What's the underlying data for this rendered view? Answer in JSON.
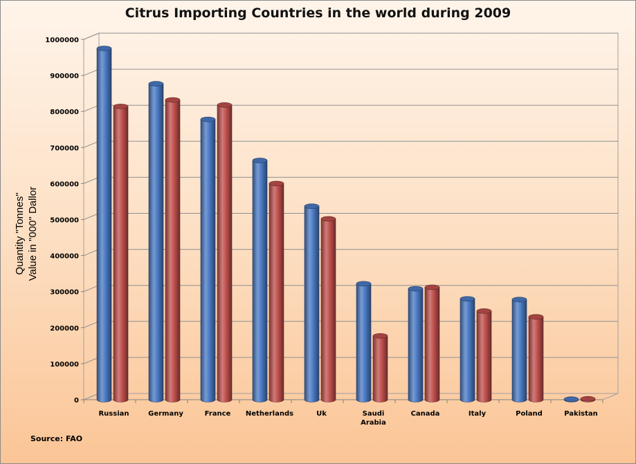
{
  "source": "Source: FAO",
  "chart_data": {
    "type": "bar",
    "title": "Citrus Importing Countries in the world during 2009",
    "ylabel_line1": "Quantity \"Tonnes\"",
    "ylabel_line2": "Value in \"000\" Dallor",
    "categories": [
      "Russian",
      "Germany",
      "France",
      "Netherlands",
      "Uk",
      "Saudi Arabia",
      "Canada",
      "Italy",
      "Poland",
      "Pakistan"
    ],
    "series": [
      {
        "color": "#4a7ac4",
        "values": [
          975000,
          877000,
          778000,
          664000,
          537000,
          322000,
          308000,
          280000,
          278000,
          1500
        ]
      },
      {
        "color": "#c0504d",
        "values": [
          814000,
          832000,
          818000,
          600000,
          502000,
          177000,
          312000,
          246000,
          230000,
          2500
        ]
      }
    ],
    "ylim": [
      0,
      1000000
    ],
    "yticks": [
      0,
      100000,
      200000,
      300000,
      400000,
      500000,
      600000,
      700000,
      800000,
      900000,
      1000000
    ],
    "grid": true
  }
}
